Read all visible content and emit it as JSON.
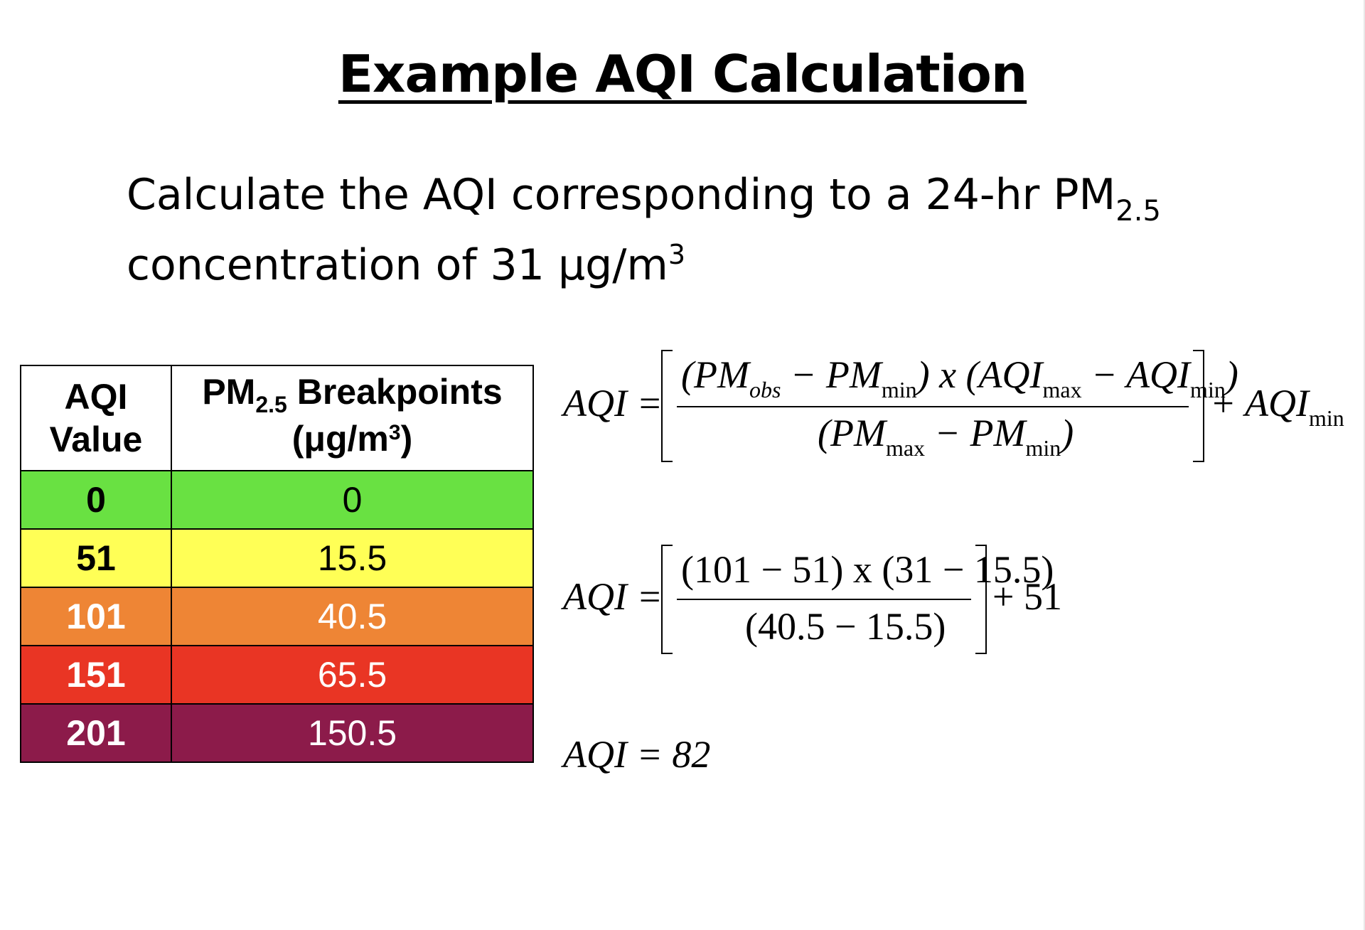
{
  "title": "Example AQI Calculation",
  "question": {
    "line1_prefix": "Calculate the AQI corresponding to a 24-hr PM",
    "line1_sub": "2.5",
    "line2_prefix": "concentration of 31 μg/m",
    "line2_sup": "3"
  },
  "table": {
    "header_aqi_line1": "AQI",
    "header_aqi_line2": "Value",
    "header_pm_prefix": "PM",
    "header_pm_sub": "2.5",
    "header_pm_suffix": " Breakpoints",
    "header_pm_unit_prefix": "(μg/m",
    "header_pm_unit_sup": "3",
    "header_pm_unit_suffix": ")",
    "rows": [
      {
        "aqi": "0",
        "pm": "0",
        "color": "#69e142"
      },
      {
        "aqi": "51",
        "pm": "15.5",
        "color": "#ffff56"
      },
      {
        "aqi": "101",
        "pm": "40.5",
        "color": "#ee8535"
      },
      {
        "aqi": "151",
        "pm": "65.5",
        "color": "#e93524"
      },
      {
        "aqi": "201",
        "pm": "150.5",
        "color": "#8c1b4a"
      }
    ]
  },
  "equations": {
    "general": {
      "lhs": "AQI =",
      "num_a": "(PM",
      "num_a_sub": "obs",
      "num_b": " − PM",
      "num_b_sub": "min",
      "num_c": ") x (AQI",
      "num_c_sub": "max",
      "num_d": " − AQI",
      "num_d_sub": "min",
      "num_e": ")",
      "den_a": "(PM",
      "den_a_sub": "max",
      "den_b": " − PM",
      "den_b_sub": "min",
      "den_c": ")",
      "tail": "+ AQI",
      "tail_sub": "min"
    },
    "substituted": {
      "lhs": "AQI =",
      "numerator": "(101 − 51) x (31 − 15.5)",
      "denominator": "(40.5 − 15.5)",
      "tail": "+ 51"
    },
    "result": {
      "text": "AQI = 82"
    }
  }
}
